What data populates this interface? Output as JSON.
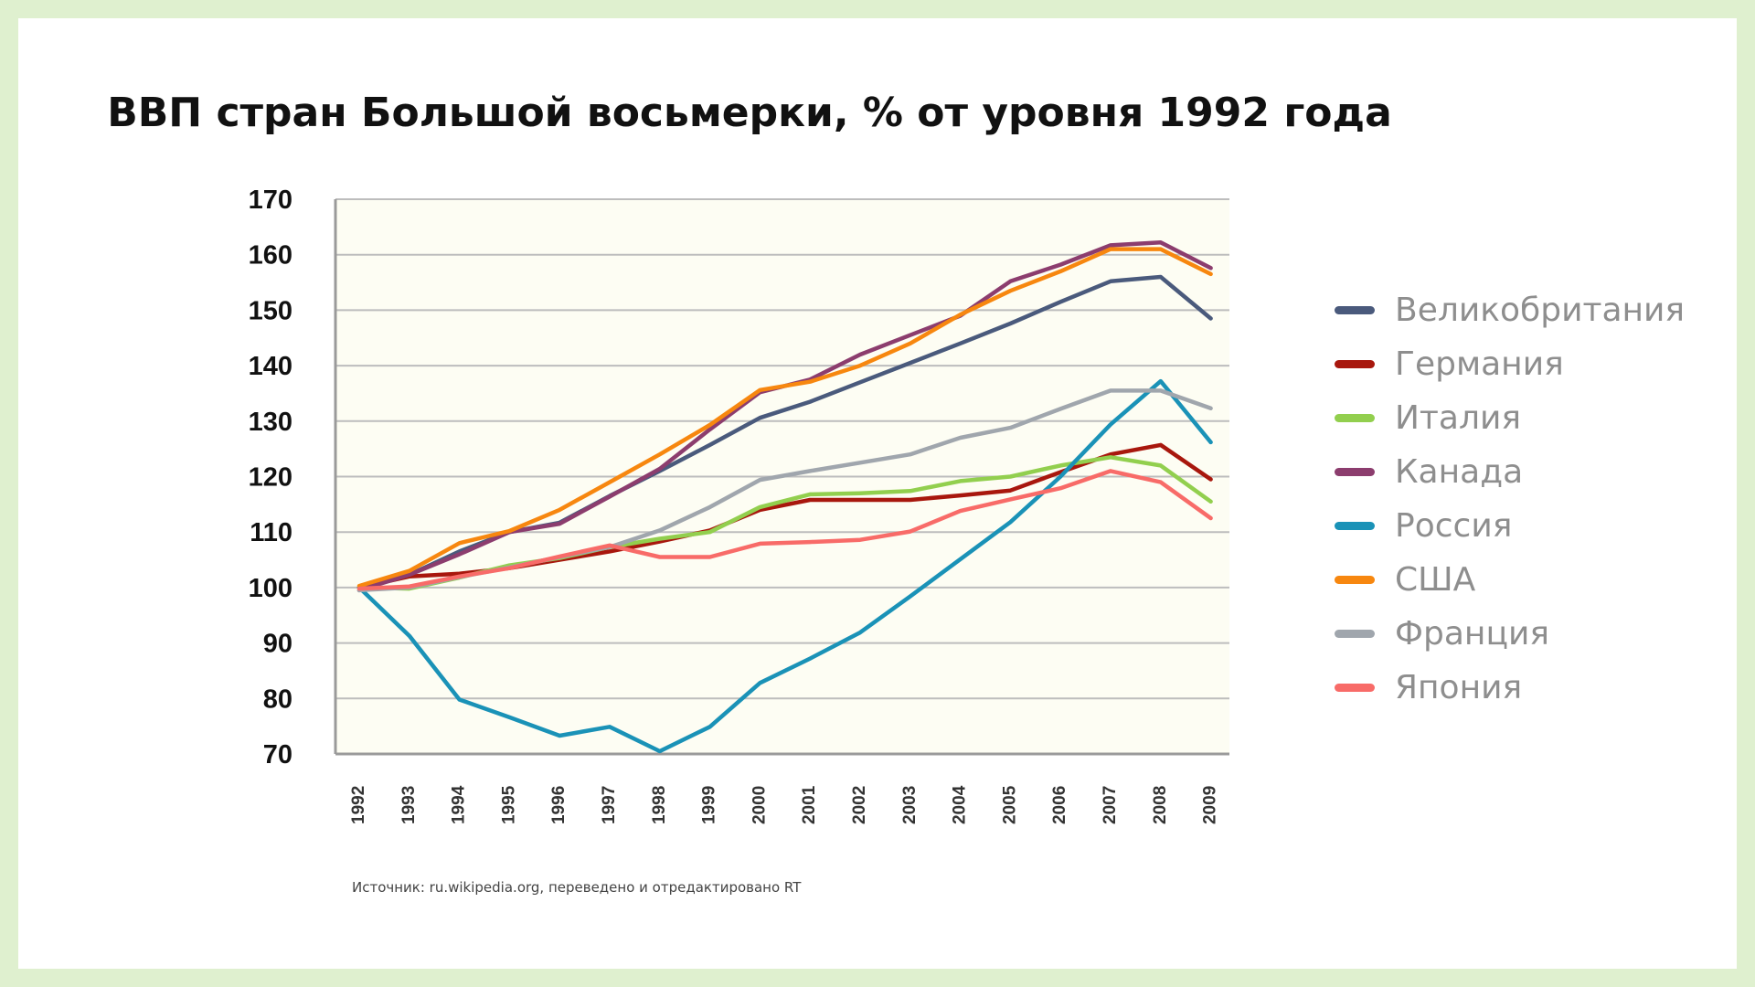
{
  "colors": {
    "plot_background": "#fdfdf3",
    "grid": "#bdbdbd",
    "axis": "#9a9a9a"
  },
  "chart_data": {
    "type": "line",
    "title": "ВВП стран Большой восьмерки, % от уровня 1992 года",
    "xlabel": "",
    "ylabel": "",
    "x": [
      "1992",
      "1993",
      "1994",
      "1995",
      "1996",
      "1997",
      "1998",
      "1999",
      "2000",
      "2001",
      "2002",
      "2003",
      "2004",
      "2005",
      "2006",
      "2007",
      "2008",
      "2009"
    ],
    "ylim": [
      70,
      170
    ],
    "yticks": [
      70,
      80,
      90,
      100,
      110,
      120,
      130,
      140,
      150,
      160,
      170
    ],
    "grid": true,
    "legend_position": "right",
    "source": "Источник: ru.wikipedia.org, переведено и отредактировано RT",
    "series": [
      {
        "name": "Великобритания",
        "color": "#4a5a7c",
        "values": [
          100,
          102.3,
          106.5,
          110,
          111.7,
          116.5,
          121,
          125.7,
          130.6,
          133.5,
          137,
          140.5,
          144,
          147.6,
          151.5,
          155.2,
          156,
          148.5
        ]
      },
      {
        "name": "Германия",
        "color": "#a8170d",
        "values": [
          100,
          102,
          102.5,
          103.5,
          105,
          106.5,
          108.3,
          110.3,
          114,
          115.8,
          115.8,
          115.8,
          116.6,
          117.5,
          120.8,
          124,
          125.7,
          119.5
        ]
      },
      {
        "name": "Италия",
        "color": "#92cf4e",
        "values": [
          100,
          99.8,
          101.8,
          104,
          105.3,
          107.3,
          108.8,
          110,
          114.5,
          116.8,
          117,
          117.4,
          119.2,
          120,
          122,
          123.5,
          122,
          115.5
        ]
      },
      {
        "name": "Канада",
        "color": "#8c3d6e",
        "values": [
          99.5,
          102.3,
          106,
          110,
          111.5,
          116.4,
          121.4,
          128.5,
          135.2,
          137.5,
          142,
          145.5,
          149,
          155.2,
          158.2,
          161.7,
          162.2,
          157.6
        ]
      },
      {
        "name": "Россия",
        "color": "#1a92b7",
        "values": [
          100,
          91.3,
          79.8,
          76.6,
          73.3,
          74.9,
          70.5,
          74.9,
          82.8,
          87.2,
          91.9,
          98.4,
          105.1,
          111.8,
          120,
          129.4,
          137.2,
          126.2
        ]
      },
      {
        "name": "США",
        "color": "#f7870f",
        "values": [
          100.3,
          103,
          108,
          110.2,
          114,
          119,
          124,
          129.3,
          135.6,
          137.1,
          140,
          144,
          149.2,
          153.5,
          157,
          161,
          161,
          156.5
        ]
      },
      {
        "name": "Франция",
        "color": "#a0a6ad",
        "values": [
          99.5,
          100,
          101.9,
          103.6,
          105.5,
          107.3,
          110.3,
          114.5,
          119.4,
          121,
          122.5,
          124,
          127,
          128.8,
          132.2,
          135.5,
          135.5,
          132.3
        ]
      },
      {
        "name": "Япония",
        "color": "#f86b68",
        "values": [
          99.8,
          100.2,
          102,
          103.5,
          105.6,
          107.6,
          105.5,
          105.5,
          107.9,
          108.2,
          108.6,
          110.1,
          113.8,
          115.9,
          117.9,
          121,
          119,
          112.5
        ]
      }
    ]
  }
}
